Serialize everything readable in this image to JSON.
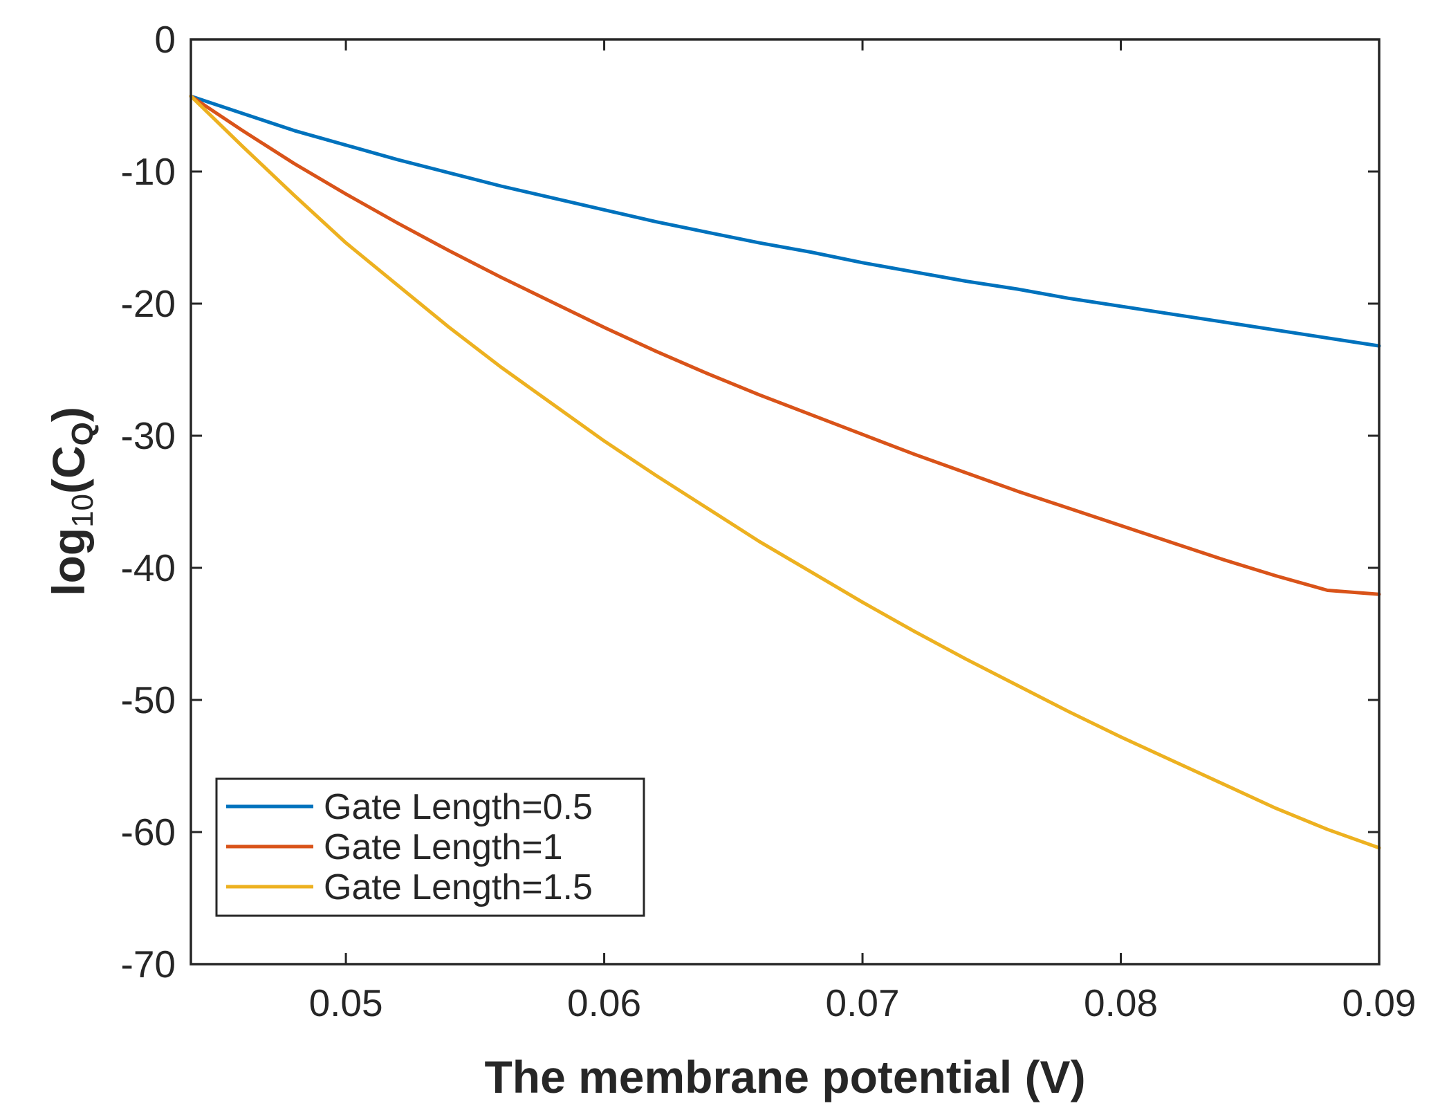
{
  "chart_data": {
    "type": "line",
    "xlabel": "The membrane potential (V)",
    "ylabel": {
      "prefix": "log",
      "prefix_sub": "10",
      "open": "(C",
      "var_sub": "Q",
      "close": ")"
    },
    "xlim": [
      0.044,
      0.09
    ],
    "ylim": [
      -70,
      0
    ],
    "x_ticks": [
      0.05,
      0.06,
      0.07,
      0.08,
      0.09
    ],
    "x_tick_labels": [
      "0.05",
      "0.06",
      "0.07",
      "0.08",
      "0.09"
    ],
    "y_ticks": [
      0,
      -10,
      -20,
      -30,
      -40,
      -50,
      -60,
      -70
    ],
    "y_tick_labels": [
      "0",
      "-10",
      "-20",
      "-30",
      "-40",
      "-50",
      "-60",
      "-70"
    ],
    "grid": false,
    "legend_position": "bottom-left",
    "x": [
      0.044,
      0.046,
      0.048,
      0.05,
      0.052,
      0.054,
      0.056,
      0.058,
      0.06,
      0.062,
      0.064,
      0.066,
      0.068,
      0.07,
      0.072,
      0.074,
      0.076,
      0.078,
      0.08,
      0.082,
      0.084,
      0.086,
      0.088,
      0.09
    ],
    "series": [
      {
        "name": "Gate Length=0.5",
        "color": "#0072BD",
        "values": [
          -4.3,
          -5.6,
          -6.9,
          -8.0,
          -9.1,
          -10.1,
          -11.1,
          -12.0,
          -12.9,
          -13.8,
          -14.6,
          -15.4,
          -16.1,
          -16.9,
          -17.6,
          -18.3,
          -18.9,
          -19.6,
          -20.2,
          -20.8,
          -21.4,
          -22.0,
          -22.6,
          -23.2
        ]
      },
      {
        "name": "Gate Length=1",
        "color": "#D95319",
        "values": [
          -4.3,
          -6.9,
          -9.4,
          -11.7,
          -13.9,
          -16.0,
          -18.0,
          -19.9,
          -21.8,
          -23.6,
          -25.3,
          -26.9,
          -28.4,
          -29.9,
          -31.4,
          -32.8,
          -34.2,
          -35.5,
          -36.8,
          -38.1,
          -39.4,
          -40.6,
          -41.7,
          -42.0
        ]
      },
      {
        "name": "Gate Length=1.5",
        "color": "#EDB120",
        "values": [
          -4.3,
          -8.1,
          -11.8,
          -15.4,
          -18.6,
          -21.8,
          -24.8,
          -27.6,
          -30.4,
          -33.0,
          -35.5,
          -38.0,
          -40.3,
          -42.6,
          -44.8,
          -46.9,
          -48.9,
          -50.9,
          -52.8,
          -54.6,
          -56.4,
          -58.2,
          -59.8,
          -61.2
        ]
      }
    ]
  }
}
